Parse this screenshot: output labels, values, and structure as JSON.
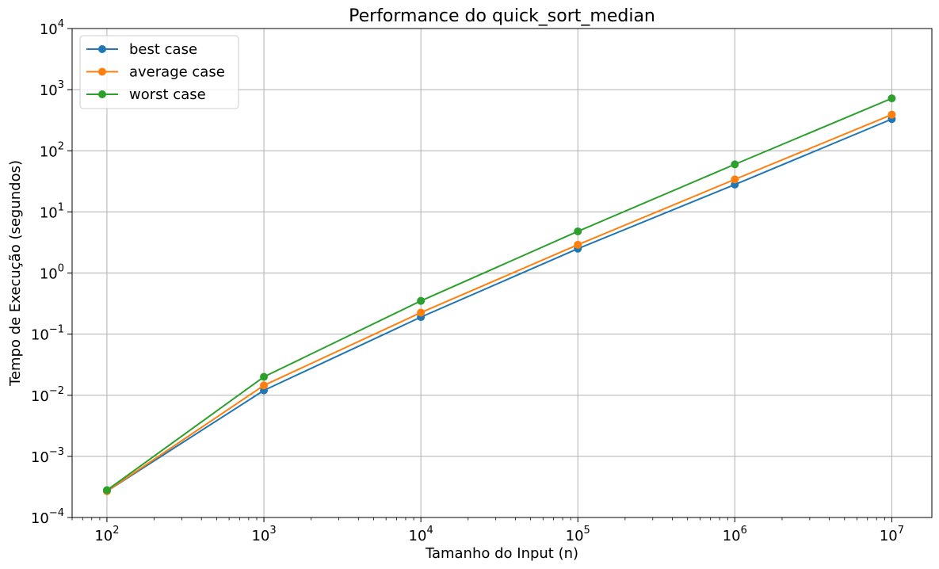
{
  "chart_data": {
    "type": "line",
    "title": "Performance do quick_sort_median",
    "xlabel": "Tamanho do Input (n)",
    "ylabel": "Tempo de Execução (segundos)",
    "xscale": "log",
    "yscale": "log",
    "xlim": [
      60,
      18000000
    ],
    "ylim": [
      0.0001,
      10000
    ],
    "grid": true,
    "legend_position": "top-left",
    "x": [
      100,
      1000,
      10000,
      100000,
      1000000,
      10000000
    ],
    "x_ticks": [
      {
        "value": 100,
        "base": "10",
        "exp": "2"
      },
      {
        "value": 1000,
        "base": "10",
        "exp": "3"
      },
      {
        "value": 10000,
        "base": "10",
        "exp": "4"
      },
      {
        "value": 100000,
        "base": "10",
        "exp": "5"
      },
      {
        "value": 1000000,
        "base": "10",
        "exp": "6"
      },
      {
        "value": 10000000,
        "base": "10",
        "exp": "7"
      }
    ],
    "y_ticks": [
      {
        "value": 0.0001,
        "base": "10",
        "exp": "−4"
      },
      {
        "value": 0.001,
        "base": "10",
        "exp": "−3"
      },
      {
        "value": 0.01,
        "base": "10",
        "exp": "−2"
      },
      {
        "value": 0.1,
        "base": "10",
        "exp": "−1"
      },
      {
        "value": 1,
        "base": "10",
        "exp": "0"
      },
      {
        "value": 10,
        "base": "10",
        "exp": "1"
      },
      {
        "value": 100,
        "base": "10",
        "exp": "2"
      },
      {
        "value": 1000,
        "base": "10",
        "exp": "3"
      },
      {
        "value": 10000,
        "base": "10",
        "exp": "4"
      }
    ],
    "series": [
      {
        "name": "best case",
        "color": "#1f77b4",
        "values": [
          0.00027,
          0.012,
          0.19,
          2.5,
          28,
          330
        ]
      },
      {
        "name": "average case",
        "color": "#ff7f0e",
        "values": [
          0.00027,
          0.0145,
          0.225,
          2.9,
          34,
          390
        ]
      },
      {
        "name": "worst case",
        "color": "#2ca02c",
        "values": [
          0.00028,
          0.02,
          0.35,
          4.8,
          60,
          720
        ]
      }
    ]
  }
}
